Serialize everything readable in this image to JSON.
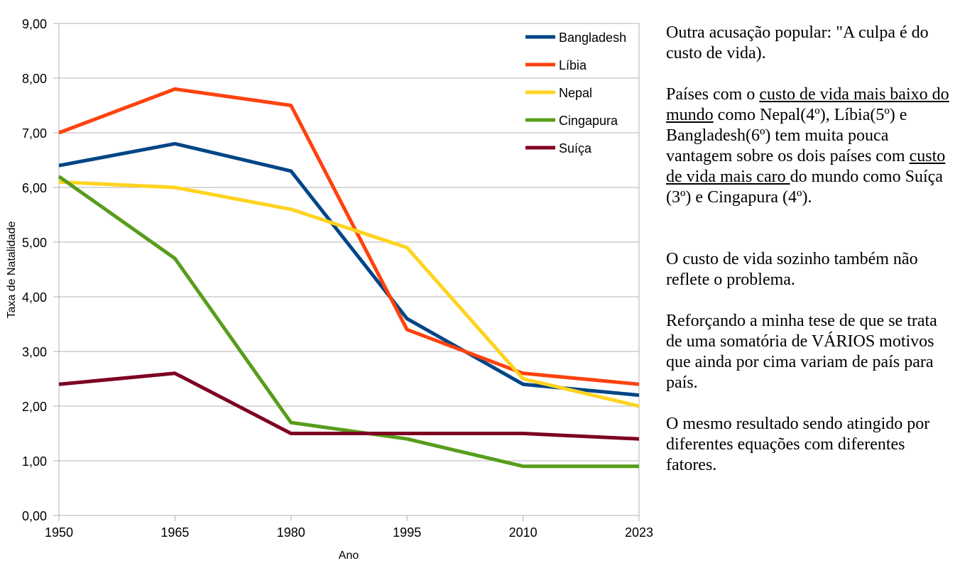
{
  "chart_data": {
    "type": "line",
    "categories": [
      "1950",
      "1965",
      "1980",
      "1995",
      "2010",
      "2023"
    ],
    "xlabel": "Ano",
    "ylabel": "Taxa de Natalidade",
    "ylim": [
      0,
      9
    ],
    "yticks": [
      "0,00",
      "1,00",
      "2,00",
      "3,00",
      "4,00",
      "5,00",
      "6,00",
      "7,00",
      "8,00",
      "9,00"
    ],
    "grid": true,
    "legend_position": "top-right",
    "series": [
      {
        "name": "Bangladesh",
        "color": "#004586",
        "values": [
          6.4,
          6.8,
          6.3,
          3.6,
          2.4,
          2.2
        ]
      },
      {
        "name": "Líbia",
        "color": "#ff420e",
        "values": [
          7.0,
          7.8,
          7.5,
          3.4,
          2.6,
          2.4
        ]
      },
      {
        "name": "Nepal",
        "color": "#ffd320",
        "values": [
          6.1,
          6.0,
          5.6,
          4.9,
          2.5,
          2.0
        ]
      },
      {
        "name": "Cingapura",
        "color": "#579d1c",
        "values": [
          6.2,
          4.7,
          1.7,
          1.4,
          0.9,
          0.9
        ]
      },
      {
        "name": "Suíça",
        "color": "#7e0021",
        "values": [
          2.4,
          2.6,
          1.5,
          1.5,
          1.5,
          1.4
        ]
      }
    ]
  },
  "notes": {
    "p1": "Outra acusação popular: \"A culpa é do custo de vida).",
    "p2_a": "Países com o ",
    "p2_u1": "custo de vida mais baixo do mundo",
    "p2_b": " como Nepal(4º), Líbia(5º) e Bangladesh(6º) tem muita pouca vantagem sobre os dois países com ",
    "p2_u2": "custo de vida mais caro ",
    "p2_c": "do mundo como Suíça (3º) e Cingapura (4º).",
    "p3": "O custo de vida sozinho também não reflete o problema.",
    "p4": "Reforçando a minha tese de que se trata de uma somatória de VÁRIOS motivos que ainda por cima variam de país para país.",
    "p5": "O mesmo resultado sendo atingido por diferentes equações com diferentes fatores."
  }
}
